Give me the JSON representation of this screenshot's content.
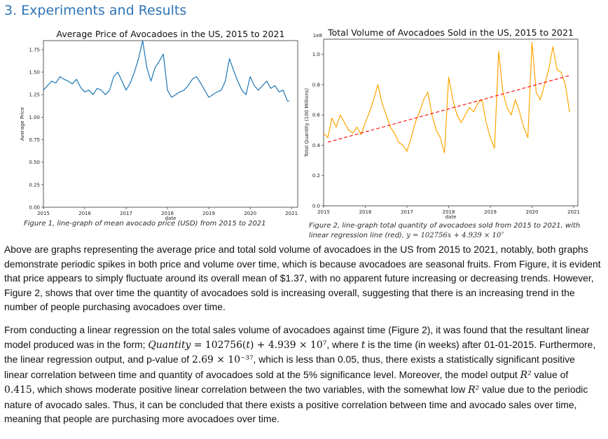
{
  "section_title": "3. Experiments and Results",
  "chart_data": [
    {
      "type": "line",
      "title": "Average Price of Avocadoes in the US, 2015 to 2021",
      "xlabel": "date",
      "ylabel": "Average Price",
      "color": "#1f77b4",
      "xlim": [
        2015,
        2021.15
      ],
      "ylim": [
        0,
        1.85
      ],
      "x_ticks": [
        "2015",
        "2016",
        "2017",
        "2018",
        "2019",
        "2020",
        "2021"
      ],
      "y_ticks": [
        "0.00",
        "0.25",
        "0.50",
        "0.75",
        "1.00",
        "1.25",
        "1.50",
        "1.75"
      ],
      "y_tick_values": [
        0,
        0.25,
        0.5,
        0.75,
        1.0,
        1.25,
        1.5,
        1.75
      ],
      "x": [
        2015.0,
        2015.1,
        2015.2,
        2015.3,
        2015.4,
        2015.5,
        2015.6,
        2015.7,
        2015.8,
        2015.9,
        2016.0,
        2016.1,
        2016.2,
        2016.3,
        2016.4,
        2016.5,
        2016.6,
        2016.7,
        2016.8,
        2016.9,
        2017.0,
        2017.1,
        2017.2,
        2017.3,
        2017.4,
        2017.5,
        2017.6,
        2017.7,
        2017.8,
        2017.9,
        2018.0,
        2018.1,
        2018.2,
        2018.3,
        2018.4,
        2018.5,
        2018.6,
        2018.7,
        2018.8,
        2018.9,
        2019.0,
        2019.1,
        2019.2,
        2019.3,
        2019.4,
        2019.5,
        2019.6,
        2019.7,
        2019.8,
        2019.9,
        2020.0,
        2020.1,
        2020.2,
        2020.3,
        2020.4,
        2020.5,
        2020.6,
        2020.7,
        2020.8,
        2020.9,
        2020.95
      ],
      "y": [
        1.3,
        1.35,
        1.4,
        1.38,
        1.45,
        1.42,
        1.4,
        1.37,
        1.42,
        1.33,
        1.28,
        1.3,
        1.25,
        1.32,
        1.3,
        1.25,
        1.3,
        1.45,
        1.5,
        1.4,
        1.3,
        1.38,
        1.5,
        1.65,
        1.85,
        1.55,
        1.4,
        1.55,
        1.62,
        1.7,
        1.3,
        1.22,
        1.25,
        1.28,
        1.3,
        1.35,
        1.42,
        1.45,
        1.38,
        1.3,
        1.22,
        1.25,
        1.28,
        1.3,
        1.4,
        1.65,
        1.52,
        1.4,
        1.3,
        1.25,
        1.45,
        1.35,
        1.3,
        1.35,
        1.4,
        1.32,
        1.35,
        1.28,
        1.3,
        1.18,
        1.18
      ]
    },
    {
      "type": "line",
      "title": "Total Volume of Avocadoes Sold in the US, 2015 to 2021",
      "xlabel": "date",
      "ylabel": "Total Quantity (100 Millions)",
      "scale_label": "1e8",
      "color": "#ffa500",
      "trend_color": "#ff0000",
      "xlim": [
        2015,
        2021.1
      ],
      "ylim": [
        0,
        1.1
      ],
      "x_ticks": [
        "2015",
        "2016",
        "2017",
        "2018",
        "2019",
        "2020",
        "2021"
      ],
      "y_ticks": [
        "0.0",
        "0.2",
        "0.4",
        "0.6",
        "0.8",
        "1.0"
      ],
      "y_tick_values": [
        0,
        0.2,
        0.4,
        0.6,
        0.8,
        1.0
      ],
      "x": [
        2015.0,
        2015.1,
        2015.2,
        2015.3,
        2015.4,
        2015.5,
        2015.6,
        2015.7,
        2015.8,
        2015.9,
        2016.0,
        2016.1,
        2016.2,
        2016.3,
        2016.4,
        2016.5,
        2016.6,
        2016.7,
        2016.8,
        2016.9,
        2017.0,
        2017.1,
        2017.2,
        2017.3,
        2017.4,
        2017.5,
        2017.6,
        2017.7,
        2017.8,
        2017.9,
        2018.0,
        2018.1,
        2018.2,
        2018.3,
        2018.4,
        2018.5,
        2018.6,
        2018.7,
        2018.8,
        2018.9,
        2019.0,
        2019.1,
        2019.2,
        2019.3,
        2019.4,
        2019.5,
        2019.6,
        2019.7,
        2019.8,
        2019.9,
        2020.0,
        2020.1,
        2020.2,
        2020.3,
        2020.4,
        2020.5,
        2020.6,
        2020.7,
        2020.8,
        2020.9
      ],
      "y": [
        0.48,
        0.45,
        0.58,
        0.52,
        0.6,
        0.55,
        0.5,
        0.48,
        0.52,
        0.47,
        0.55,
        0.62,
        0.7,
        0.8,
        0.68,
        0.6,
        0.52,
        0.48,
        0.42,
        0.4,
        0.36,
        0.45,
        0.55,
        0.62,
        0.7,
        0.75,
        0.6,
        0.5,
        0.45,
        0.35,
        0.85,
        0.7,
        0.6,
        0.55,
        0.6,
        0.65,
        0.62,
        0.68,
        0.7,
        0.55,
        0.45,
        0.38,
        1.02,
        0.75,
        0.65,
        0.6,
        0.7,
        0.62,
        0.52,
        0.45,
        1.08,
        0.75,
        0.7,
        0.8,
        0.9,
        1.05,
        0.9,
        0.88,
        0.8,
        0.62
      ],
      "trend": {
        "x": [
          2015.1,
          2020.9
        ],
        "y": [
          0.42,
          0.86
        ]
      }
    }
  ],
  "captions": {
    "fig1": "Figure 1, line-graph of mean avocado price (USD) from 2015 to 2021",
    "fig2_line1": "Figure 2, line-graph total quantity of avocadoes sold from 2015 to 2021, with",
    "fig2_line2": "linear regression line (red),",
    "fig2_eq": "y = 102756x + 4.939 × 10⁷"
  },
  "paragraph1": "Above are graphs representing the average price and total sold volume of avocadoes in the US from 2015 to 2021, notably, both graphs demonstrate periodic spikes in both price and volume over time, which is because avocadoes are seasonal fruits. From Figure, it is evident that price appears to simply fluctuate around its overall mean of $1.37, with no apparent future increasing or decreasing trends. However, Figure 2, shows that over time the quantity of avocadoes sold is increasing overall, suggesting that there is an increasing trend in the number of people purchasing avocadoes over time.",
  "paragraph2": {
    "p1": "From conducting a linear regression on the total sales volume of avocadoes against time (Figure 2), it was found that the resultant linear model produced was in the form; ",
    "eq_lhs": "Quantity",
    "eq_rhs": " = 102756(",
    "eq_t": "t",
    "eq_rest": ") + 4.939 × 10⁷",
    "p2": ", where ",
    "t": "t",
    "p3": " is the time (in weeks) after 01-01-2015. Furthermore, the linear regression output, and p-value of ",
    "pval": "2.69 × 10⁻³⁷",
    "p4": ", which is less than 0.05, thus, there exists a statistically significant positive linear correlation between time and quantity of avocadoes sold at the 5% significance level. Moreover, the model output ",
    "r2a": "R²",
    "p5": " value of ",
    "r2val": "0.415",
    "p6": ", which shows moderate positive linear correlation between the two variables, with the somewhat low ",
    "r2b": "R²",
    "p7": " value due to the periodic nature of avocado sales. Thus, it can be concluded that there exists a positive correlation between time and avocado sales over time, meaning that people are purchasing more avocadoes over time."
  }
}
